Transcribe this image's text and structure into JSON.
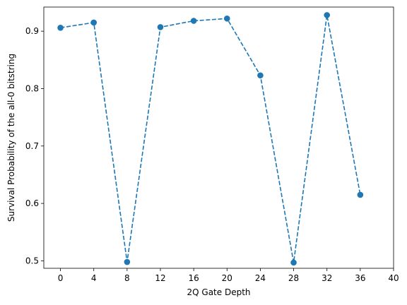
{
  "chart_data": {
    "type": "line",
    "title": "",
    "xlabel": "2Q Gate Depth",
    "ylabel": "Survival Probability of the all-0 bitstring",
    "xlim": [
      -2,
      40
    ],
    "ylim": [
      0.487,
      0.942
    ],
    "xticks": [
      0,
      4,
      8,
      12,
      16,
      20,
      24,
      28,
      32,
      36,
      40
    ],
    "yticks": [
      0.5,
      0.6,
      0.7,
      0.8,
      0.9
    ],
    "ytick_labels": [
      "0.5",
      "0.6",
      "0.7",
      "0.8",
      "0.9"
    ],
    "grid": false,
    "legend": false,
    "series": [
      {
        "x": [
          0,
          4,
          8,
          12,
          16,
          20,
          24,
          28,
          32,
          36
        ],
        "y": [
          0.906,
          0.915,
          0.498,
          0.907,
          0.918,
          0.922,
          0.823,
          0.497,
          0.928,
          0.615
        ],
        "color": "#1f77b4",
        "linestyle": "dashed",
        "marker": "circle"
      }
    ]
  }
}
